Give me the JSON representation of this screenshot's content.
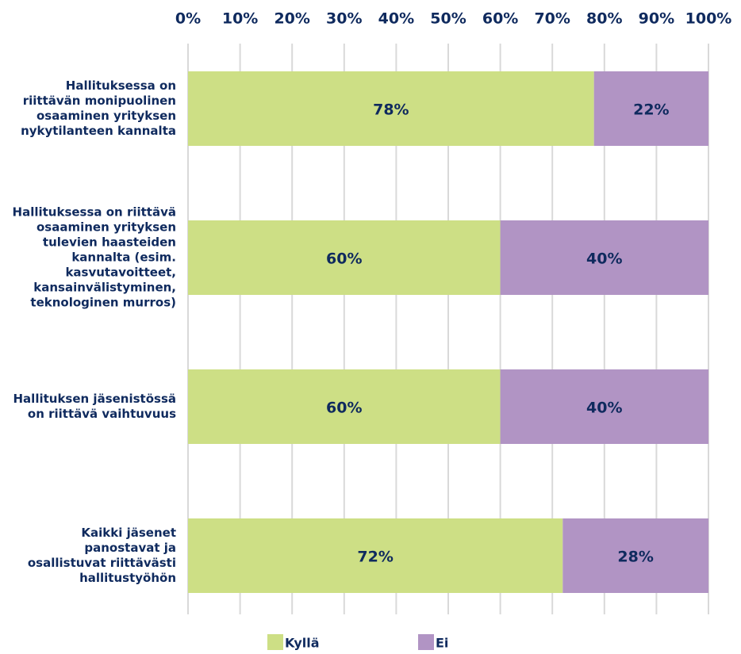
{
  "chart_data": {
    "type": "stacked_barh",
    "categories": [
      "Hallituksessa on riittävän monipuolinen osaaminen yrityksen nykytilanteen kannalta",
      "Hallituksessa on riittävä osaaminen yrityksen tulevien haasteiden kannalta (esim. kasvutavoitteet, kansainvälistyminen, teknologinen murros)",
      "Hallituksen jäsenistössä on riittävä vaihtuvuus",
      "Kaikki jäsenet panostavat ja osallistuvat riittävästi hallitustyöhön"
    ],
    "series": [
      {
        "name": "Kyllä",
        "color": "#cddf85",
        "values": [
          78,
          60,
          60,
          72
        ],
        "value_labels": [
          "78%",
          "60%",
          "60%",
          "72%"
        ]
      },
      {
        "name": "Ei",
        "color": "#b194c4",
        "values": [
          22,
          40,
          40,
          28
        ],
        "value_labels": [
          "22%",
          "40%",
          "40%",
          "28%"
        ]
      }
    ],
    "xlim": [
      0,
      100
    ],
    "xticks": [
      {
        "value": 0,
        "label": "0%"
      },
      {
        "value": 10,
        "label": "10%"
      },
      {
        "value": 20,
        "label": "20%"
      },
      {
        "value": 30,
        "label": "30%"
      },
      {
        "value": 40,
        "label": "40%"
      },
      {
        "value": 50,
        "label": "50%"
      },
      {
        "value": 60,
        "label": "60%"
      },
      {
        "value": 70,
        "label": "70%"
      },
      {
        "value": 80,
        "label": "80%"
      },
      {
        "value": 90,
        "label": "90%"
      },
      {
        "value": 100,
        "label": "100%"
      }
    ],
    "grid": true,
    "legend": "bottom"
  }
}
